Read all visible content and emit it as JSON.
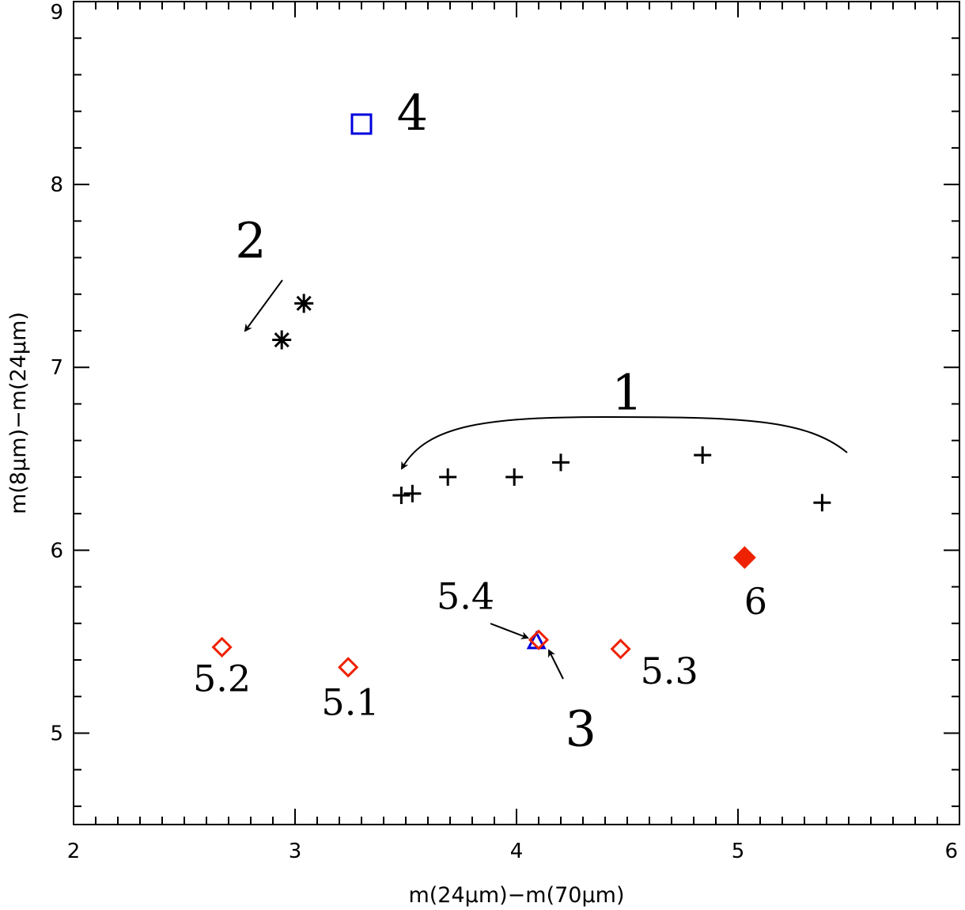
{
  "chart_data": {
    "type": "scatter",
    "xlabel": "m(24μm)−m(70μm)",
    "ylabel": "m(8μm)−m(24μm)",
    "xlim": [
      2,
      6
    ],
    "ylim": [
      4.5,
      9
    ],
    "x_major_ticks": [
      2,
      3,
      4,
      5,
      6
    ],
    "y_major_ticks": [
      5,
      6,
      7,
      8,
      9
    ],
    "x_tick_labels": [
      "2",
      "3",
      "4",
      "5",
      "6"
    ],
    "y_tick_labels": [
      "5",
      "6",
      "7",
      "8",
      "9"
    ],
    "grid": false,
    "legend": "none",
    "series": [
      {
        "marker": "plus",
        "color": "#000000",
        "points": [
          {
            "x": 3.48,
            "y": 6.3
          },
          {
            "x": 3.53,
            "y": 6.31
          },
          {
            "x": 3.69,
            "y": 6.4
          },
          {
            "x": 3.99,
            "y": 6.4
          },
          {
            "x": 4.2,
            "y": 6.48
          },
          {
            "x": 4.84,
            "y": 6.52
          },
          {
            "x": 5.38,
            "y": 6.26
          }
        ]
      },
      {
        "marker": "asterisk",
        "color": "#000000",
        "points": [
          {
            "x": 2.94,
            "y": 7.15
          },
          {
            "x": 3.04,
            "y": 7.35
          }
        ]
      },
      {
        "marker": "triangle-open",
        "color": "#0000dd",
        "points": [
          {
            "x": 4.09,
            "y": 5.5
          }
        ]
      },
      {
        "marker": "square-open",
        "color": "#0000dd",
        "points": [
          {
            "x": 3.3,
            "y": 8.33
          }
        ]
      },
      {
        "marker": "diamond-open",
        "color": "#ee2200",
        "points": [
          {
            "x": 3.24,
            "y": 5.36
          },
          {
            "x": 2.67,
            "y": 5.47
          },
          {
            "x": 4.47,
            "y": 5.46
          },
          {
            "x": 4.1,
            "y": 5.51
          }
        ]
      },
      {
        "marker": "diamond-filled",
        "color": "#ee2200",
        "points": [
          {
            "x": 5.03,
            "y": 5.96
          }
        ]
      }
    ],
    "annotations": [
      {
        "id": "a1",
        "text": "1",
        "x": 4.5,
        "y": 6.77,
        "size": "large"
      },
      {
        "id": "a2",
        "text": "2",
        "x": 2.8,
        "y": 7.6,
        "size": "large"
      },
      {
        "id": "a3",
        "text": "3",
        "x": 4.29,
        "y": 4.93,
        "size": "large"
      },
      {
        "id": "a4",
        "text": "4",
        "x": 3.53,
        "y": 8.3,
        "size": "large"
      },
      {
        "id": "a51",
        "text": "5.1",
        "x": 3.25,
        "y": 5.1,
        "size": "medium"
      },
      {
        "id": "a52",
        "text": "5.2",
        "x": 2.67,
        "y": 5.23,
        "size": "medium"
      },
      {
        "id": "a53",
        "text": "5.3",
        "x": 4.69,
        "y": 5.27,
        "size": "medium"
      },
      {
        "id": "a54",
        "text": "5.4",
        "x": 3.77,
        "y": 5.68,
        "size": "medium"
      },
      {
        "id": "a6",
        "text": "6",
        "x": 5.08,
        "y": 5.65,
        "size": "medium"
      }
    ]
  }
}
